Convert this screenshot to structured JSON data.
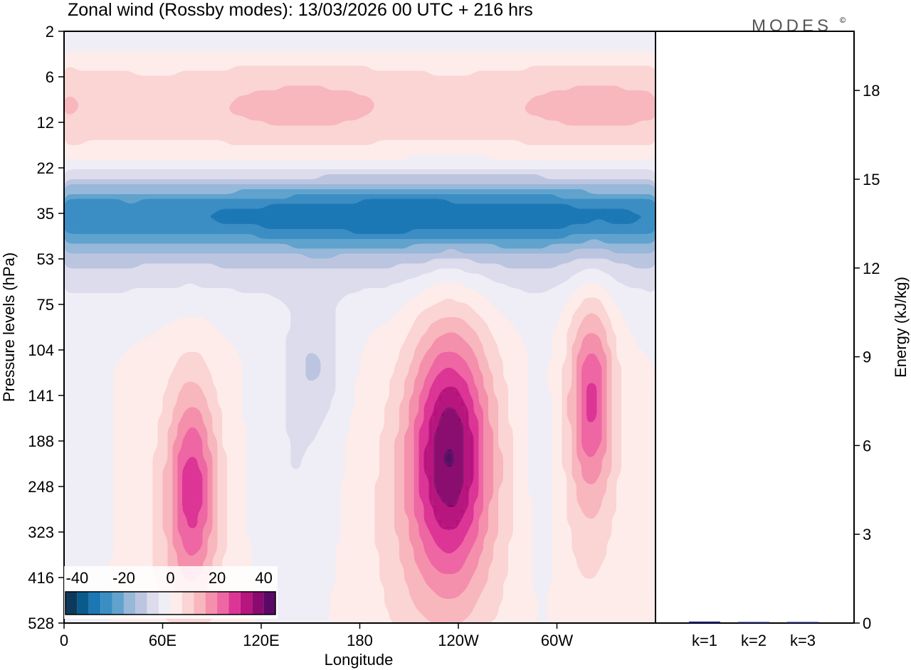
{
  "title": "Zonal wind (Rossby modes):  13/03/2026  00 UTC  + 216 hrs",
  "logo": "MODES",
  "logo_mark": "©",
  "chart_data": [
    {
      "type": "heatmap",
      "variable": "Zonal wind (Rossby modes)",
      "xlabel": "Longitude",
      "ylabel": "Pressure levels (hPa)",
      "x_ticks": [
        "0",
        "60E",
        "120E",
        "180",
        "120W",
        "60W"
      ],
      "x_tick_lon": [
        0,
        60,
        120,
        180,
        240,
        300
      ],
      "xlim_lon": [
        0,
        360
      ],
      "y_ticks": [
        "2",
        "6",
        "12",
        "22",
        "35",
        "53",
        "75",
        "104",
        "141",
        "188",
        "248",
        "323",
        "416",
        "528"
      ],
      "colorbar": {
        "tick_labels": [
          "-40",
          "-20",
          "0",
          "20",
          "40"
        ],
        "tick_values": [
          -40,
          -20,
          0,
          20,
          40
        ],
        "range": [
          -45,
          45
        ],
        "levels": [
          -45,
          -40,
          -35,
          -30,
          -25,
          -20,
          -15,
          -10,
          -5,
          0,
          5,
          10,
          15,
          20,
          25,
          30,
          35,
          40,
          45
        ],
        "colors": [
          "#0d3a5c",
          "#0b5a8c",
          "#1b78b4",
          "#3a8ec4",
          "#61a3cd",
          "#97b8d9",
          "#bcc5e0",
          "#dcdcec",
          "#efedf6",
          "#fdecea",
          "#fbd4d4",
          "#f8b6bd",
          "#f48fac",
          "#ee66a3",
          "#dc3596",
          "#b8157f",
          "#8a0a70",
          "#5a0a66"
        ]
      },
      "features": [
        {
          "name": "upper positive band",
          "level_hPa": [
            6,
            16
          ],
          "value": 10
        },
        {
          "name": "easterly jet",
          "level_hPa": [
            25,
            45
          ],
          "value": -25
        },
        {
          "name": "jet maximum 120W",
          "lon": 235,
          "level_hPa": 180,
          "value": 32
        },
        {
          "name": "jet maximum 75E",
          "lon": 78,
          "level_hPa": 250,
          "value": 23
        },
        {
          "name": "jet maximum 40W",
          "lon": 321,
          "level_hPa": 140,
          "value": 22
        },
        {
          "name": "negative tongue 150E",
          "lon": 150,
          "level_hPa": 110,
          "value": -8
        }
      ]
    },
    {
      "type": "bar",
      "ylabel": "Energy (kJ/kg)",
      "categories": [
        "k=1",
        "k=2",
        "k=3"
      ],
      "values": [
        0.05,
        0.03,
        0.02
      ],
      "ylim": [
        0,
        20
      ],
      "y_ticks": [
        0,
        3,
        6,
        9,
        12,
        15,
        18
      ],
      "bar_color": "#1a1a7a"
    }
  ]
}
